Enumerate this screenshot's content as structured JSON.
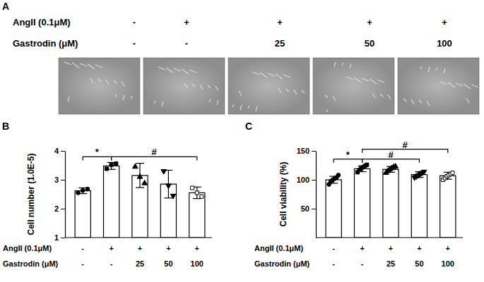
{
  "panel_a": {
    "label": "A",
    "rows": [
      {
        "name": "AngII (0.1μM)",
        "values": [
          "-",
          "+",
          "+",
          "+",
          "+"
        ]
      },
      {
        "name": "Gastrodin (μM)",
        "values": [
          "-",
          "-",
          "25",
          "50",
          "100"
        ]
      }
    ]
  },
  "chart_data": [
    {
      "type": "bar",
      "panel": "B",
      "y_label": "Cell number (1.0E-5)",
      "categories": [
        null,
        null,
        null,
        null,
        null
      ],
      "values": [
        2.62,
        3.48,
        3.15,
        2.85,
        2.55
      ],
      "errors": [
        0.1,
        0.12,
        0.42,
        0.48,
        0.2
      ],
      "points": [
        {
          "marker": "circle",
          "values": [
            2.55,
            2.63,
            2.68
          ]
        },
        {
          "marker": "square",
          "values": [
            3.38,
            3.52,
            3.56
          ]
        },
        {
          "marker": "triangle",
          "values": [
            3.45,
            3.1,
            2.88
          ]
        },
        {
          "marker": "triangle-down",
          "values": [
            3.3,
            2.8,
            2.45
          ]
        },
        {
          "marker": "square-open",
          "values": [
            2.72,
            2.55,
            2.42
          ]
        }
      ],
      "ylim": [
        1,
        4
      ],
      "yticks": [
        1,
        2,
        3,
        4
      ],
      "annotations": [
        {
          "text": "*",
          "from": 0,
          "to": 1
        },
        {
          "text": "#",
          "from": 1,
          "to": 4
        }
      ],
      "treatments": [
        {
          "name": "AngII (0.1μM)",
          "values": [
            "-",
            "+",
            "+",
            "+",
            "+"
          ]
        },
        {
          "name": "Gastrodin (μM)",
          "values": [
            "-",
            "-",
            "25",
            "50",
            "100"
          ]
        }
      ]
    },
    {
      "type": "bar",
      "panel": "C",
      "y_label": "Cell viability (%)",
      "categories": [
        null,
        null,
        null,
        null,
        null
      ],
      "values": [
        100,
        119,
        118,
        109,
        107
      ],
      "errors": [
        6,
        5,
        5,
        5,
        6
      ],
      "points": [
        {
          "marker": "circle",
          "values": [
            92,
            97,
            100,
            102,
            104,
            108
          ]
        },
        {
          "marker": "square",
          "values": [
            113,
            117,
            120,
            122,
            124,
            126
          ]
        },
        {
          "marker": "triangle",
          "values": [
            112,
            115,
            118,
            120,
            122,
            123
          ]
        },
        {
          "marker": "triangle-down",
          "values": [
            104,
            106,
            108,
            110,
            112,
            114
          ]
        },
        {
          "marker": "square-open",
          "values": [
            100,
            103,
            106,
            108,
            110,
            112
          ]
        }
      ],
      "ylim": [
        0,
        150
      ],
      "yticks": [
        50,
        100,
        150
      ],
      "annotations": [
        {
          "text": "*",
          "from": 0,
          "to": 1
        },
        {
          "text": "#",
          "from": 1,
          "to": 3
        },
        {
          "text": "#",
          "from": 1,
          "to": 4
        }
      ],
      "treatments": [
        {
          "name": "AngII (0.1μM)",
          "values": [
            "-",
            "+",
            "+",
            "+",
            "+"
          ]
        },
        {
          "name": "Gastrodin (μM)",
          "values": [
            "-",
            "-",
            "25",
            "50",
            "100"
          ]
        }
      ]
    }
  ]
}
